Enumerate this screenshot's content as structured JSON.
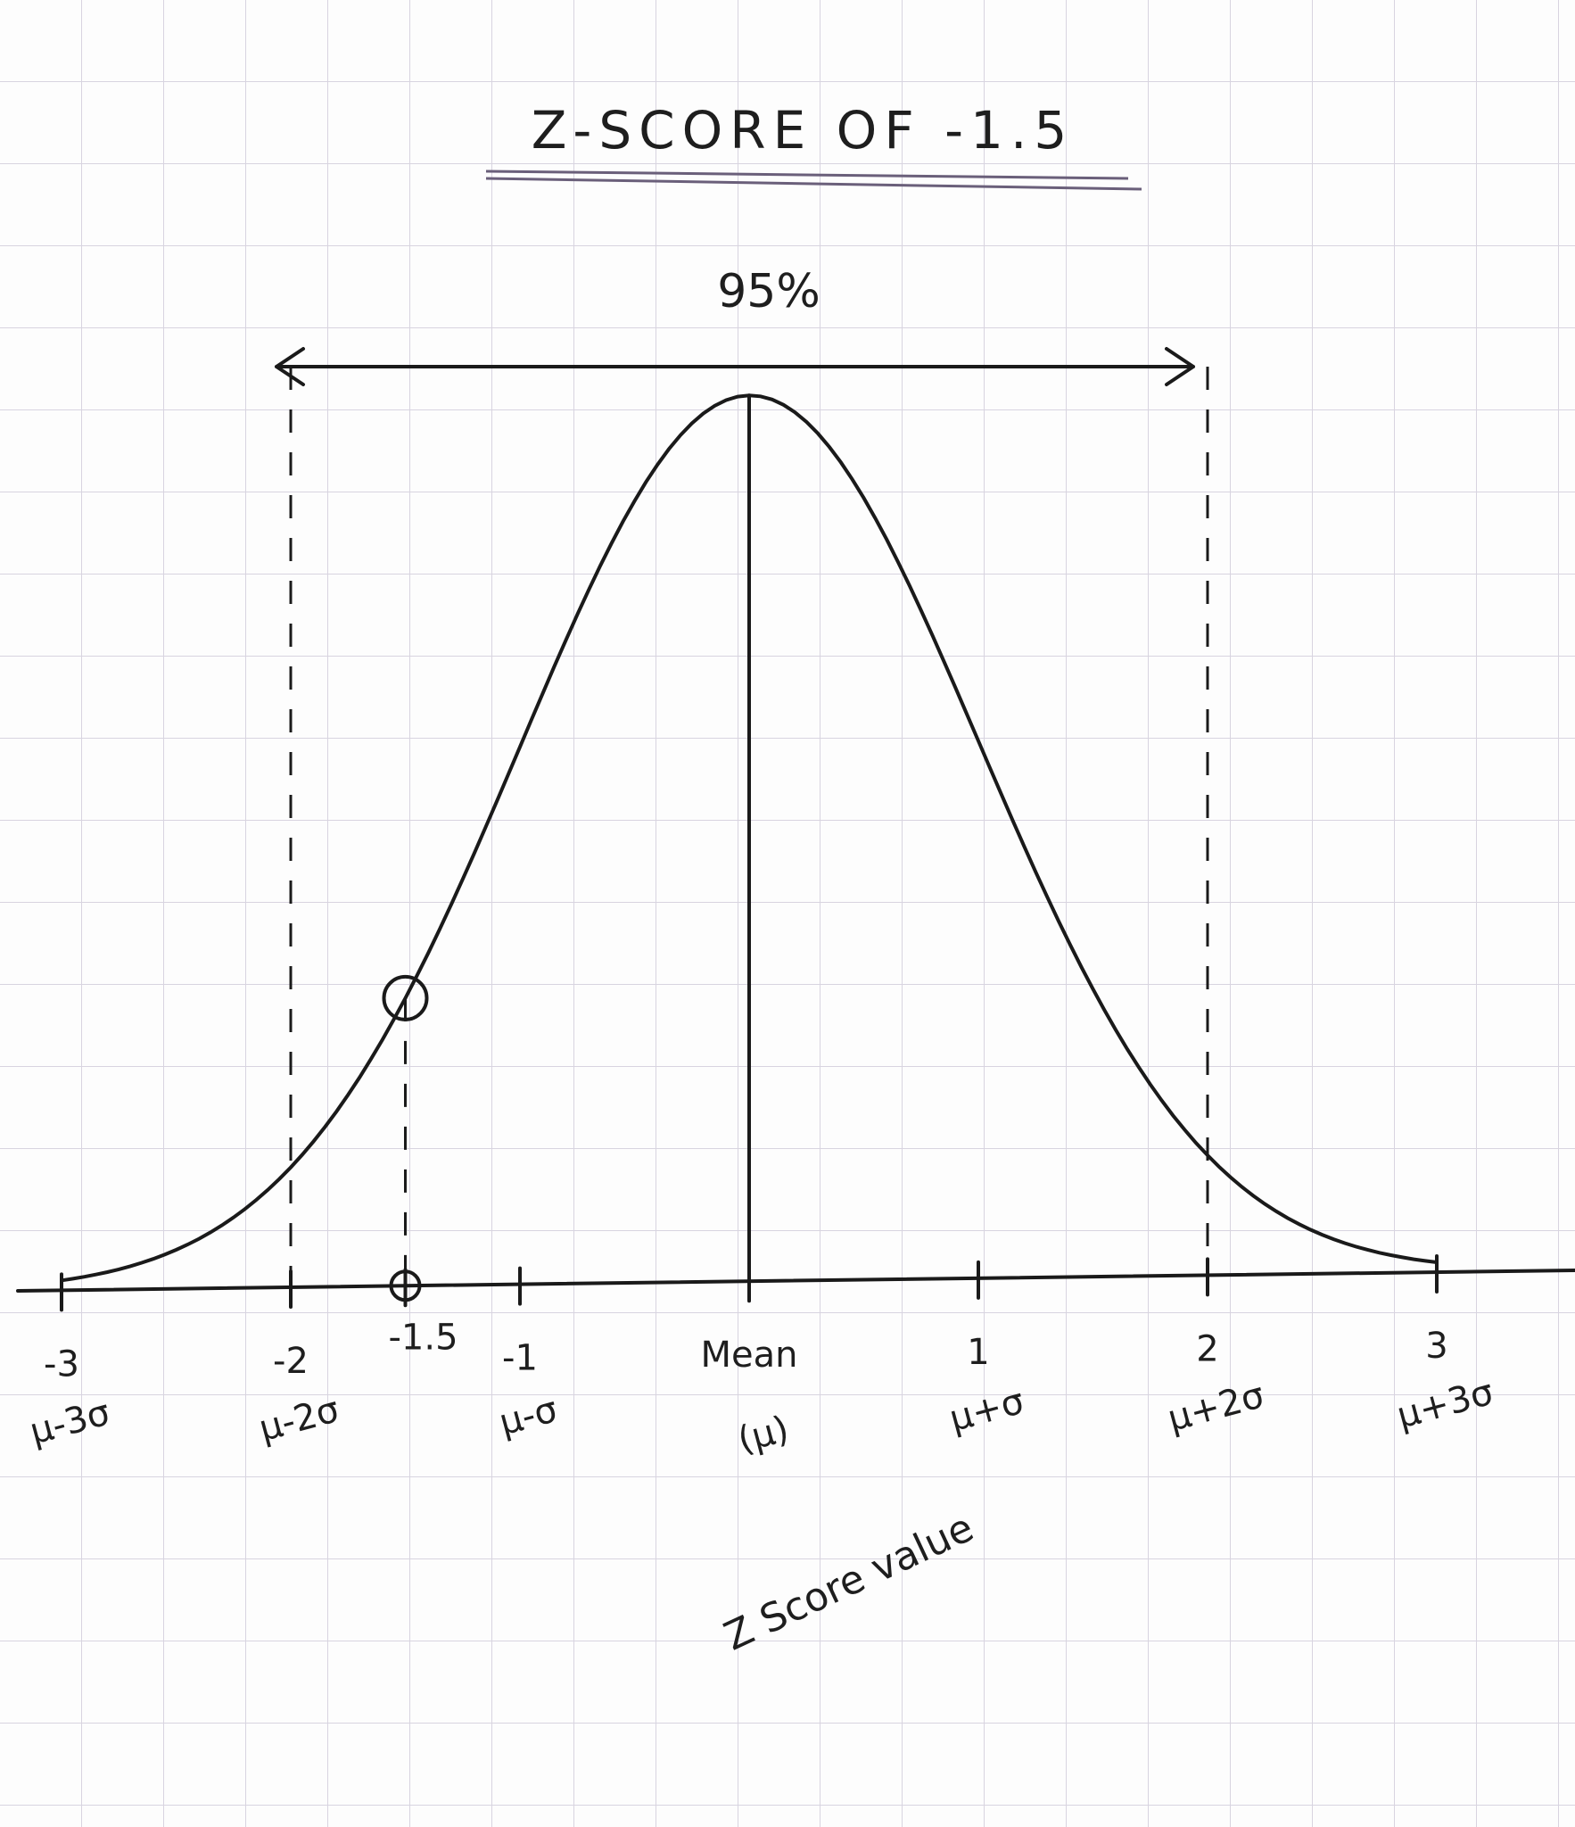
{
  "title": "Z-SCORE OF -1.5",
  "annotation": "95%",
  "axis": {
    "ticks": [
      {
        "z": "-3",
        "expr": "μ-3σ"
      },
      {
        "z": "-2",
        "expr": "μ-2σ"
      },
      {
        "z": "-1.5"
      },
      {
        "z": "-1",
        "expr": "μ-σ"
      },
      {
        "z": "Mean",
        "expr": "(μ)"
      },
      {
        "z": "1",
        "expr": "μ+σ"
      },
      {
        "z": "2",
        "expr": "μ+2σ"
      },
      {
        "z": "3",
        "expr": "μ+3σ"
      }
    ]
  },
  "axis_label": "Z Score value"
}
